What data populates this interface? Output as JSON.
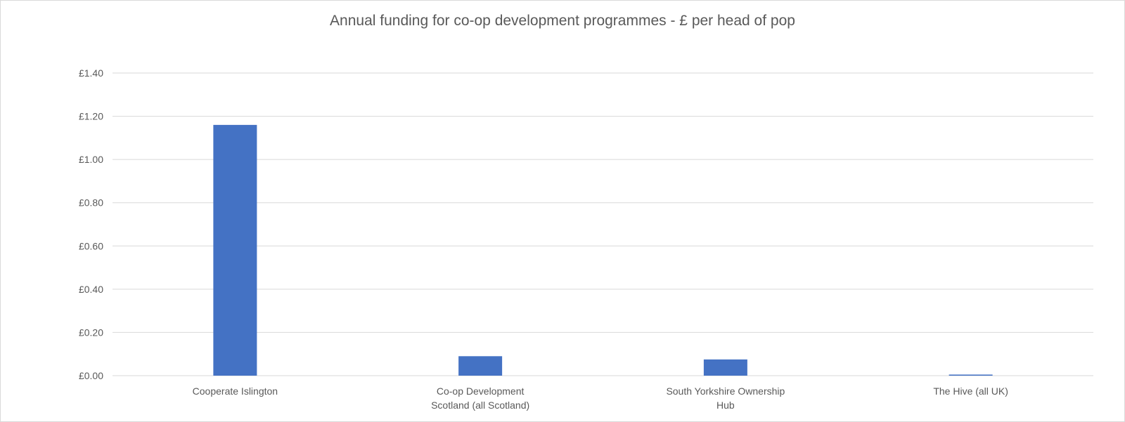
{
  "chart_data": {
    "type": "bar",
    "title": "Annual funding for co-op development programmes - £ per head of pop",
    "categories": [
      [
        "Cooperate Islington"
      ],
      [
        "Co-op Development",
        "Scotland (all Scotland)"
      ],
      [
        "South Yorkshire Ownership",
        "Hub"
      ],
      [
        "The Hive (all UK)"
      ]
    ],
    "values": [
      1.16,
      0.09,
      0.075,
      0.005
    ],
    "ylim": [
      0,
      1.4
    ],
    "yticks": [
      "£0.00",
      "£0.20",
      "£0.40",
      "£0.60",
      "£0.80",
      "£1.00",
      "£1.20",
      "£1.40"
    ],
    "ytick_values": [
      0,
      0.2,
      0.4,
      0.6,
      0.8,
      1.0,
      1.2,
      1.4
    ],
    "grid": true,
    "bar_color": "#4472C4",
    "grid_color": "#d9d9d9"
  }
}
